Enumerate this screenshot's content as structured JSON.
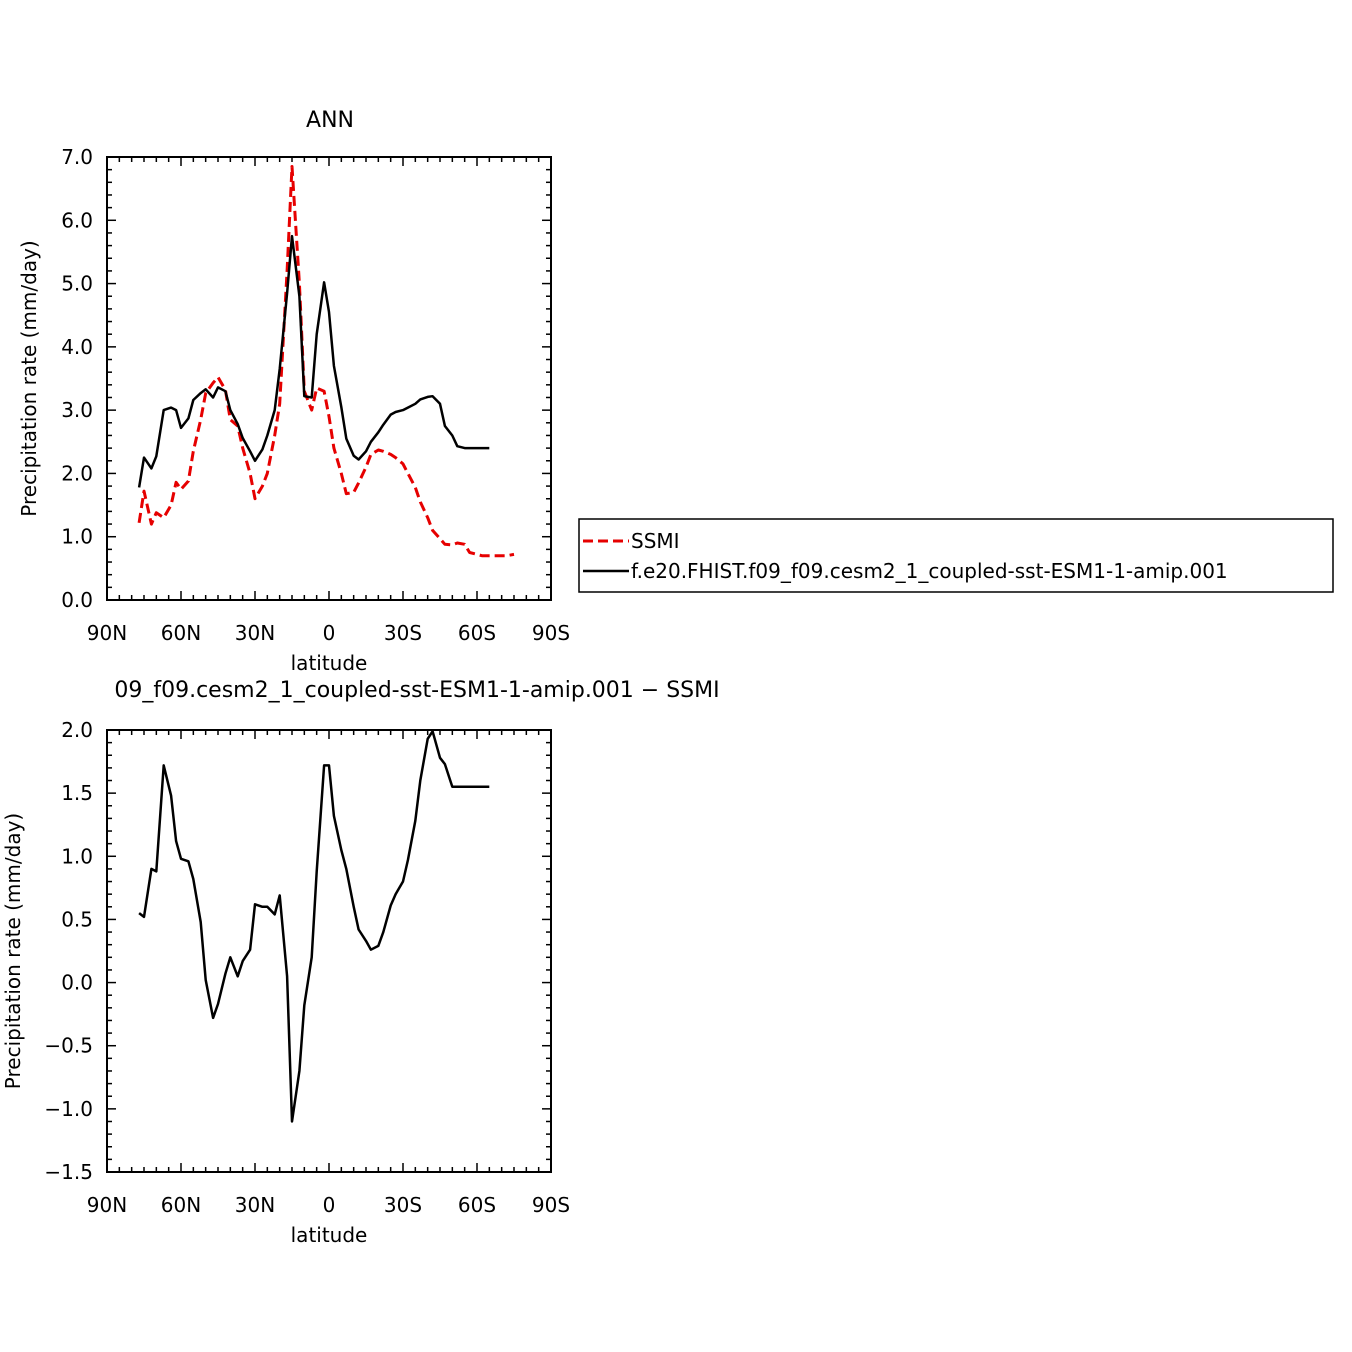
{
  "chart_data": [
    {
      "type": "line",
      "title": "ANN",
      "xlabel": "latitude",
      "ylabel": "Precipitation rate (mm/day)",
      "xlim": [
        90,
        -90
      ],
      "ylim": [
        0,
        7
      ],
      "x_ticks": [
        90,
        60,
        30,
        0,
        -30,
        -60,
        -90
      ],
      "x_tick_labels": [
        "90N",
        "60N",
        "30N",
        "0",
        "30S",
        "60S",
        "90S"
      ],
      "y_ticks": [
        0,
        1,
        2,
        3,
        4,
        5,
        6,
        7
      ],
      "y_tick_labels": [
        "0.0",
        "1.0",
        "2.0",
        "3.0",
        "4.0",
        "5.0",
        "6.0",
        "7.0"
      ],
      "legend_position": "right",
      "series": [
        {
          "name": "SSMI",
          "color": "#e60000",
          "dash": "dashed",
          "x": [
            77,
            75,
            72,
            70,
            67,
            64,
            62,
            60,
            57,
            55,
            52,
            50,
            47,
            45,
            42,
            40,
            37,
            35,
            32,
            30,
            27,
            25,
            22,
            20,
            17,
            15,
            12,
            10,
            7,
            5,
            2,
            0,
            -2,
            -5,
            -7,
            -10,
            -12,
            -15,
            -17,
            -20,
            -22,
            -25,
            -27,
            -30,
            -32,
            -35,
            -37,
            -40,
            -42,
            -45,
            -47,
            -50,
            -52,
            -55,
            -57,
            -60,
            -62,
            -65,
            -67,
            -70,
            -72,
            -75
          ],
          "y": [
            1.22,
            1.72,
            1.2,
            1.38,
            1.3,
            1.5,
            1.86,
            1.75,
            1.88,
            2.35,
            2.85,
            3.27,
            3.43,
            3.52,
            3.32,
            2.85,
            2.75,
            2.4,
            2.0,
            1.6,
            1.8,
            2.0,
            2.6,
            3.1,
            5.2,
            6.85,
            5.0,
            3.3,
            3.0,
            3.35,
            3.3,
            2.9,
            2.4,
            2.0,
            1.68,
            1.7,
            1.85,
            2.1,
            2.3,
            2.37,
            2.35,
            2.3,
            2.25,
            2.15,
            2.0,
            1.78,
            1.55,
            1.3,
            1.1,
            0.97,
            0.88,
            0.87,
            0.9,
            0.88,
            0.75,
            0.72,
            0.7,
            0.7,
            0.7,
            0.7,
            0.7,
            0.72
          ]
        },
        {
          "name": "f.e20.FHIST.f09_f09.cesm2_1_coupled-sst-ESM1-1-amip.001",
          "color": "#000000",
          "dash": "solid",
          "x": [
            77,
            75,
            72,
            70,
            67,
            64,
            62,
            60,
            57,
            55,
            52,
            50,
            47,
            45,
            42,
            40,
            37,
            35,
            32,
            30,
            27,
            25,
            22,
            20,
            17,
            15,
            12,
            10,
            7,
            5,
            2,
            0,
            -2,
            -5,
            -7,
            -10,
            -12,
            -15,
            -17,
            -20,
            -22,
            -25,
            -27,
            -30,
            -32,
            -35,
            -37,
            -40,
            -42,
            -45,
            -47,
            -50,
            -52,
            -55,
            -57,
            -60,
            -62,
            -65
          ],
          "y": [
            1.78,
            2.25,
            2.08,
            2.27,
            3.0,
            3.04,
            3.0,
            2.72,
            2.87,
            3.16,
            3.27,
            3.33,
            3.2,
            3.36,
            3.3,
            3.0,
            2.78,
            2.56,
            2.35,
            2.2,
            2.38,
            2.6,
            3.0,
            3.65,
            4.85,
            5.75,
            4.8,
            3.22,
            3.2,
            4.2,
            5.02,
            4.55,
            3.7,
            3.05,
            2.55,
            2.28,
            2.22,
            2.35,
            2.5,
            2.65,
            2.77,
            2.93,
            2.97,
            3.0,
            3.04,
            3.1,
            3.17,
            3.21,
            3.22,
            3.1,
            2.75,
            2.6,
            2.43,
            2.4,
            2.4,
            2.4,
            2.4,
            2.4
          ]
        }
      ]
    },
    {
      "type": "line",
      "title": "09_f09.cesm2_1_coupled-sst-ESM1-1-amip.001 − SSMI",
      "xlabel": "latitude",
      "ylabel": "Precipitation rate (mm/day)",
      "xlim": [
        90,
        -90
      ],
      "ylim": [
        -1.5,
        2.0
      ],
      "x_ticks": [
        90,
        60,
        30,
        0,
        -30,
        -60,
        -90
      ],
      "x_tick_labels": [
        "90N",
        "60N",
        "30N",
        "0",
        "30S",
        "60S",
        "90S"
      ],
      "y_ticks": [
        -1.5,
        -1.0,
        -0.5,
        0.0,
        0.5,
        1.0,
        1.5,
        2.0
      ],
      "y_tick_labels": [
        "−1.5",
        "−1.0",
        "−0.5",
        "0.0",
        "0.5",
        "1.0",
        "1.5",
        "2.0"
      ],
      "series": [
        {
          "color": "#000000",
          "dash": "solid",
          "x": [
            77,
            75,
            72,
            70,
            67,
            64,
            62,
            60,
            57,
            55,
            52,
            50,
            47,
            45,
            42,
            40,
            37,
            35,
            32,
            30,
            27,
            25,
            22,
            20,
            17,
            15,
            12,
            10,
            7,
            5,
            2,
            0,
            -2,
            -5,
            -7,
            -10,
            -12,
            -15,
            -17,
            -20,
            -22,
            -25,
            -27,
            -30,
            -32,
            -35,
            -37,
            -40,
            -42,
            -45,
            -47,
            -50,
            -52,
            -55,
            -57,
            -60,
            -62,
            -65
          ],
          "y": [
            0.55,
            0.52,
            0.9,
            0.88,
            1.72,
            1.48,
            1.12,
            0.98,
            0.96,
            0.82,
            0.48,
            0.02,
            -0.28,
            -0.17,
            0.07,
            0.2,
            0.05,
            0.17,
            0.26,
            0.62,
            0.6,
            0.6,
            0.54,
            0.69,
            0.05,
            -1.1,
            -0.7,
            -0.18,
            0.2,
            0.88,
            1.72,
            1.72,
            1.32,
            1.05,
            0.9,
            0.6,
            0.42,
            0.33,
            0.26,
            0.29,
            0.4,
            0.61,
            0.7,
            0.8,
            0.97,
            1.28,
            1.6,
            1.93,
            1.99,
            1.78,
            1.73,
            1.55,
            1.55,
            1.55,
            1.55,
            1.55,
            1.55,
            1.55
          ]
        }
      ]
    }
  ]
}
